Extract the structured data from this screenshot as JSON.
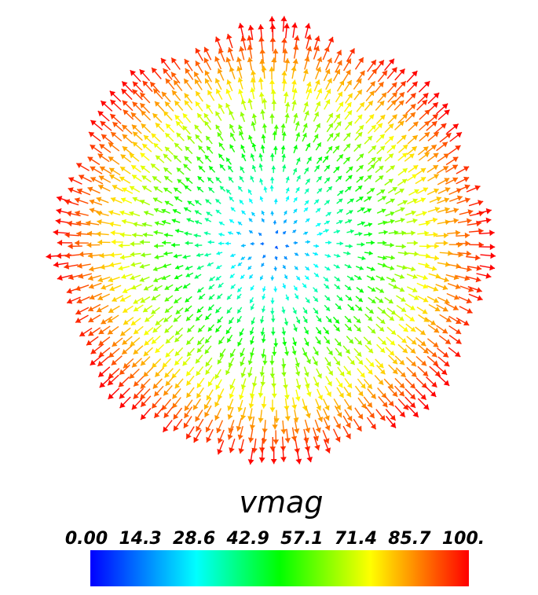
{
  "chart_data": {
    "type": "vector_field",
    "field": "radial velocity glyphs clipped to a circular domain",
    "magnitude_range": [
      0,
      100
    ],
    "colormap": [
      "#0000ff",
      "#00ffff",
      "#00ff00",
      "#ffff00",
      "#ff0000"
    ],
    "colorbar": {
      "title": "vmag",
      "ticks": [
        "0.00",
        "14.3",
        "28.6",
        "42.9",
        "57.1",
        "71.4",
        "85.7",
        "100."
      ]
    }
  }
}
